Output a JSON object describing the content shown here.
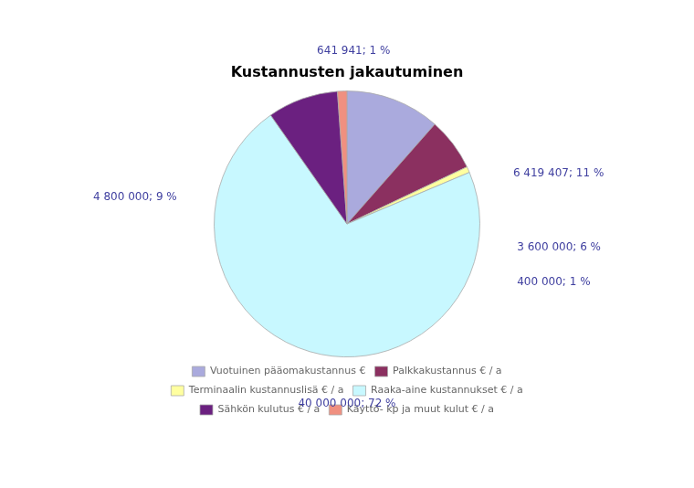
{
  "chart_data": {
    "type": "pie",
    "title": "Kustannusten jakautuminen",
    "categories": [
      "Vuotuinen pääomakustannus €",
      "Palkkakustannus € / a",
      "Terminaalin kustannuslisä € / a",
      "Raaka-aine kustannukset € / a",
      "Sähkön kulutus € / a",
      "Käyttö- kp ja muut kulut € / a"
    ],
    "values": [
      6419407,
      3600000,
      400000,
      40000000,
      4800000,
      641941
    ],
    "value_labels": [
      "6 419 407; 11 %",
      "3 600 000; 6 %",
      "400 000; 1 %",
      "40 000 000; 72 %",
      "4 800 000; 9 %",
      "641 941; 1 %"
    ],
    "colors": [
      "#aaaadd",
      "#8b3060",
      "#ffffa0",
      "#c8f8ff",
      "#6b2080",
      "#f09080"
    ],
    "data_labels": true,
    "legend": "bottom"
  }
}
